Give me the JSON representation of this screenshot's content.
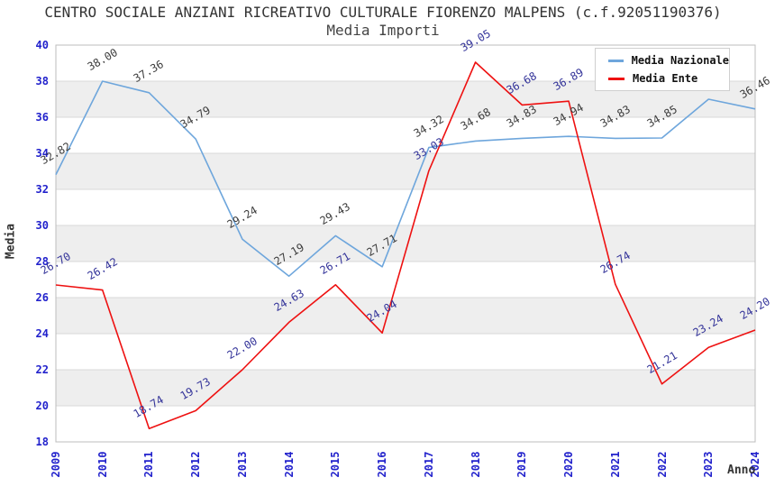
{
  "header": {
    "title": "CENTRO SOCIALE ANZIANI RICREATIVO CULTURALE FIORENZO MALPENS (c.f.92051190376)",
    "subtitle": "Media Importi"
  },
  "colors": {
    "band": "#EEEEEE",
    "gridline": "#D8D8D8",
    "plot_border": "#BDBDBD",
    "tick_text": "#2222CC",
    "nazionale_line": "#6EA6DC",
    "ente_line": "#EE1111",
    "nazionale_label_text": "#3C3C3C",
    "ente_label_text": "#333399"
  },
  "chart_data": {
    "type": "line",
    "title": "CENTRO SOCIALE ANZIANI RICREATIVO CULTURALE FIORENZO MALPENS (c.f.92051190376)",
    "subtitle": "Media Importi",
    "xlabel": "Anno",
    "ylabel": "Media",
    "ylim": [
      18,
      40
    ],
    "ytick_step": 2,
    "grid": "horizontal gridlines with alternating gray bands every 2 units",
    "legend_position": "top-right",
    "markers": false,
    "x": [
      "2009",
      "2010",
      "2011",
      "2012",
      "2013",
      "2014",
      "2015",
      "2016",
      "2017",
      "2018",
      "2019",
      "2020",
      "2021",
      "2022",
      "2023",
      "2024"
    ],
    "series": [
      {
        "name": "Media Nazionale",
        "color": "#6EA6DC",
        "label_color": "#3C3C3C",
        "values": [
          32.82,
          38.0,
          37.36,
          34.79,
          29.24,
          27.19,
          29.43,
          27.71,
          34.32,
          34.68,
          34.83,
          34.94,
          34.83,
          34.85,
          37.0,
          36.46
        ],
        "labels": [
          "32.82",
          "38.00",
          "37.36",
          "34.79",
          "29.24",
          "27.19",
          "29.43",
          "27.71",
          "34.32",
          "34.68",
          "34.83",
          "34.94",
          "34.83",
          "34.85",
          "",
          "36.46"
        ]
      },
      {
        "name": "Media Ente",
        "color": "#EE1111",
        "label_color": "#333399",
        "values": [
          26.7,
          26.42,
          18.74,
          19.73,
          22.0,
          24.63,
          26.71,
          24.04,
          33.03,
          39.05,
          36.68,
          36.89,
          26.74,
          21.21,
          23.24,
          24.2
        ],
        "labels": [
          "26.70",
          "26.42",
          "18.74",
          "19.73",
          "22.00",
          "24.63",
          "26.71",
          "24.04",
          "33.03",
          "39.05",
          "36.68",
          "36.89",
          "26.74",
          "21.21",
          "23.24",
          "24.20"
        ]
      }
    ]
  }
}
